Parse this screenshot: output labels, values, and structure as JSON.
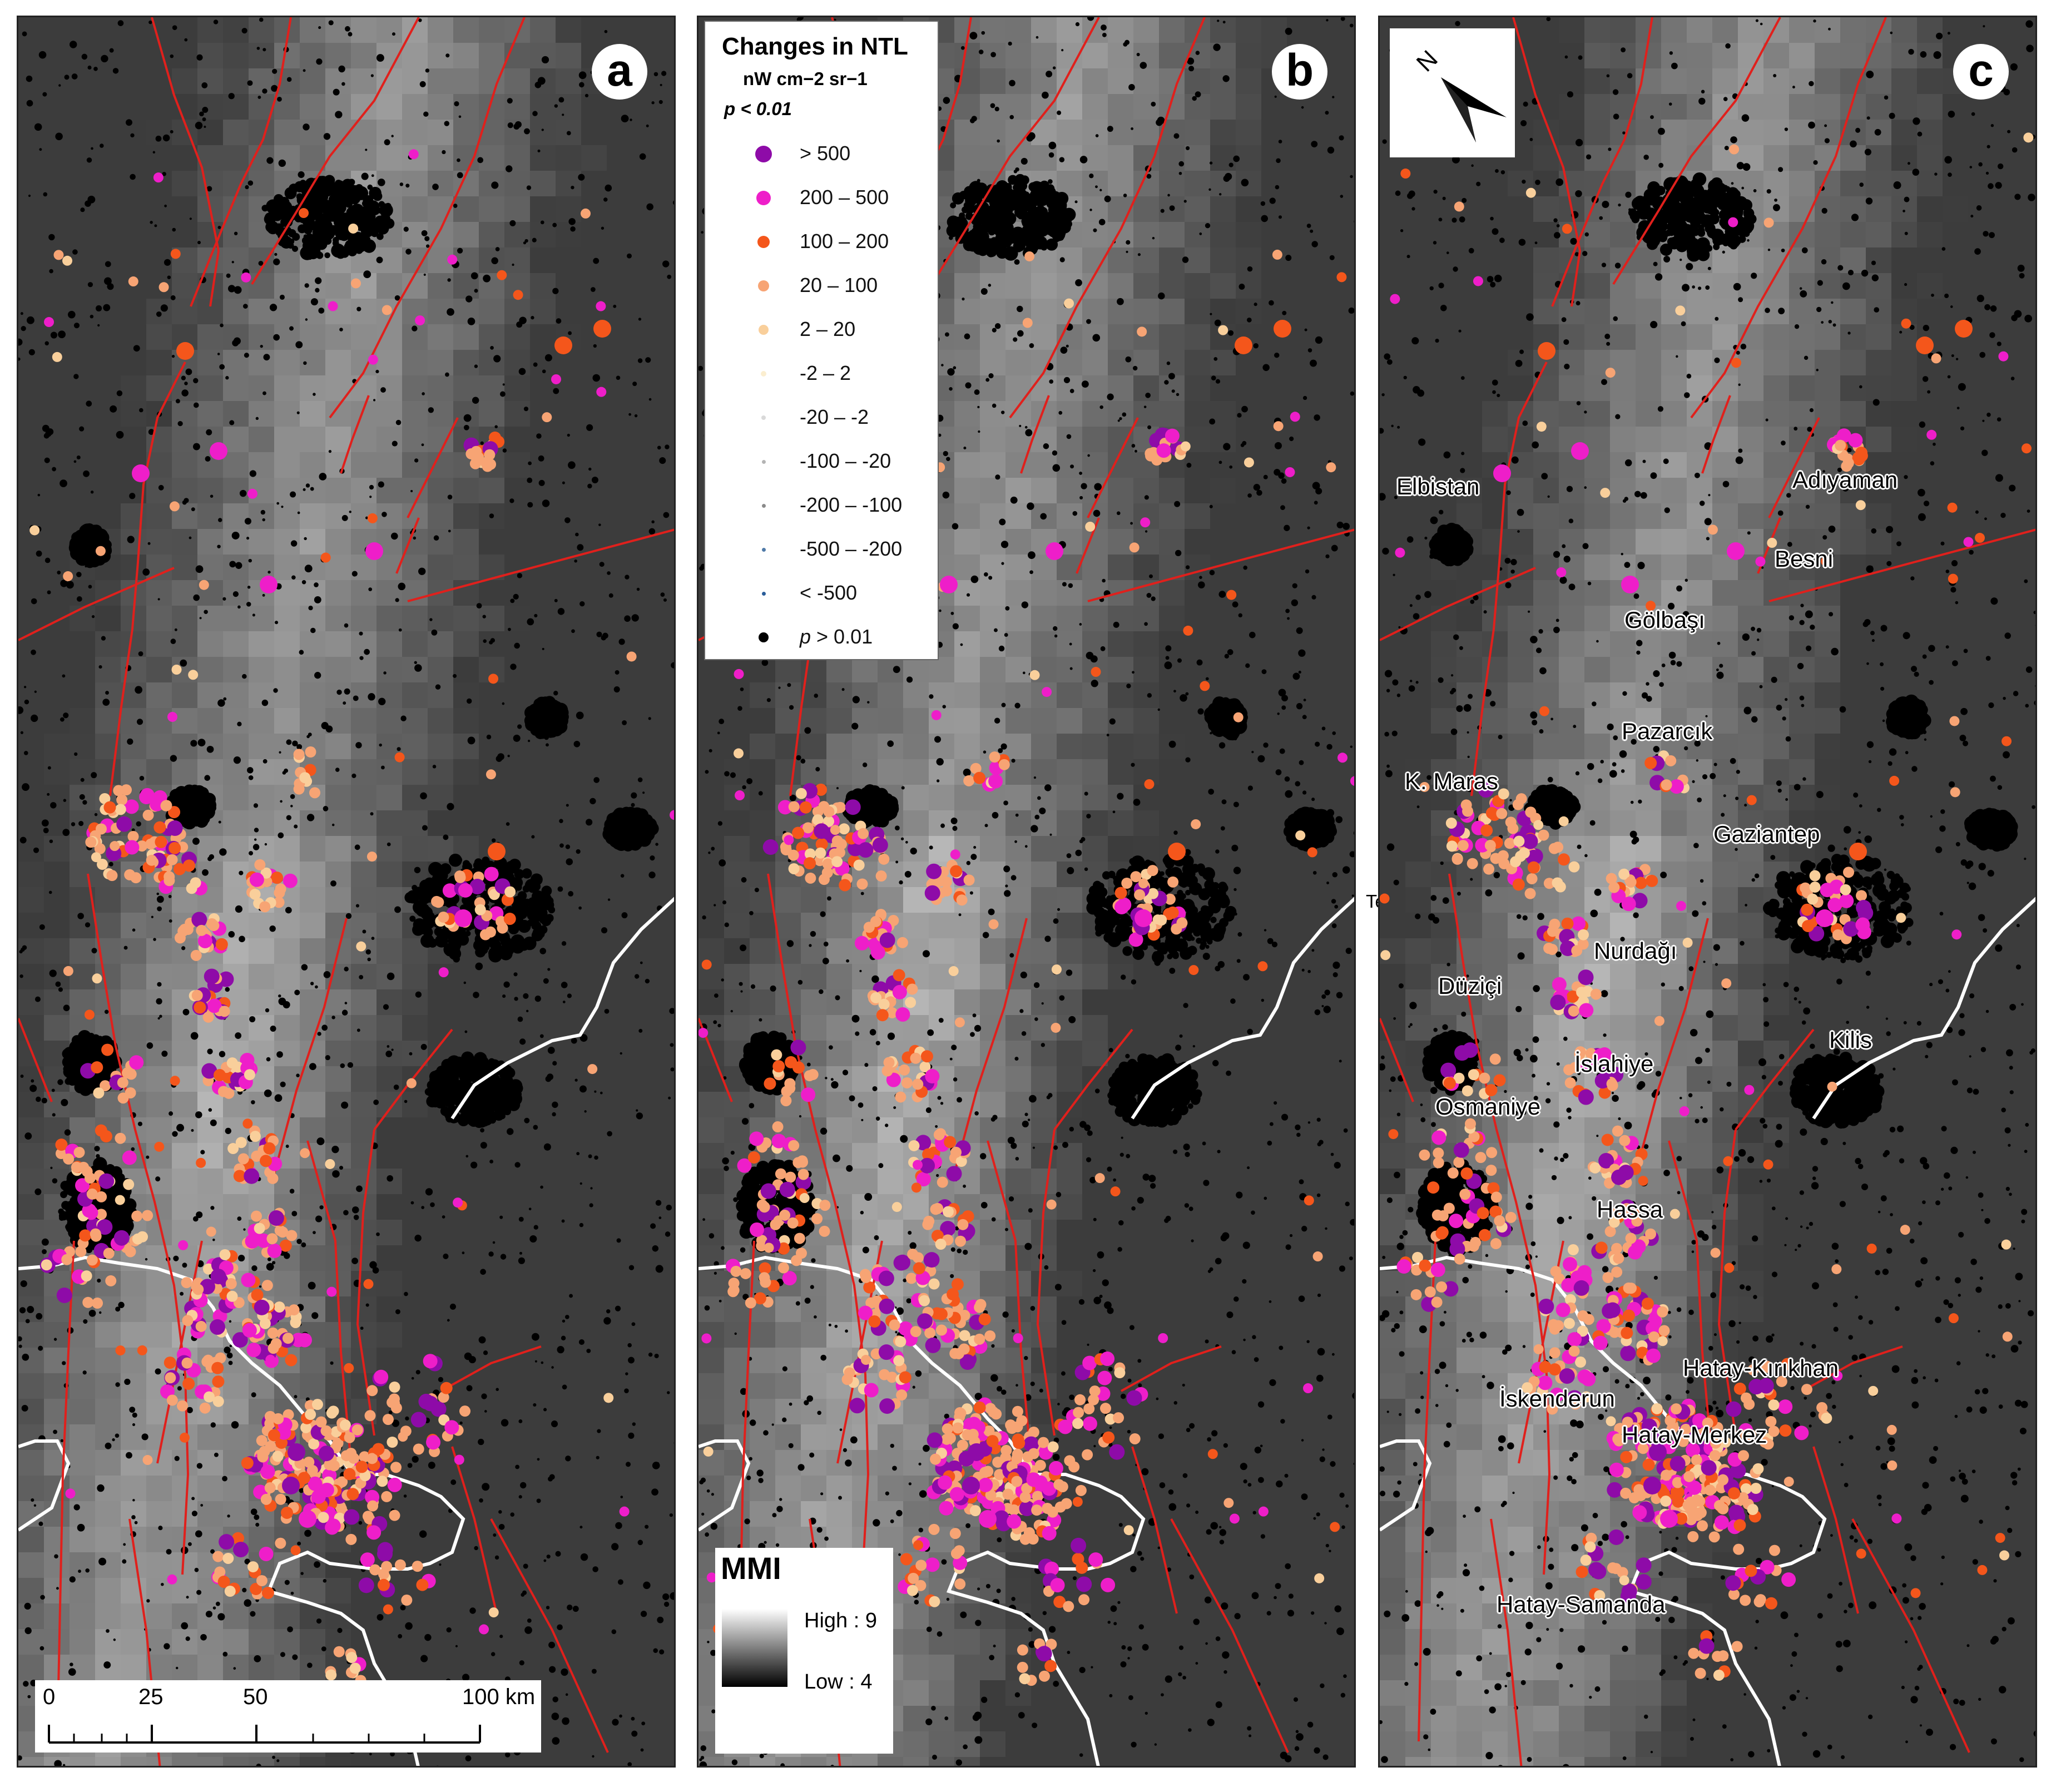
{
  "panels": [
    {
      "label": "a"
    },
    {
      "label": "b"
    },
    {
      "label": "c"
    }
  ],
  "legend": {
    "title": "Changes in NTL",
    "unit": "nW cm−2 sr−1",
    "pvalue": "p < 0.01",
    "classes": [
      {
        "label": "> 500",
        "color": "#8e0ba8"
      },
      {
        "label": "200 – 500",
        "color": "#ee1ec9"
      },
      {
        "label": "100 – 200",
        "color": "#f4561b"
      },
      {
        "label": "20 – 100",
        "color": "#f7a474"
      },
      {
        "label": "2 – 20",
        "color": "#f9cf9b"
      },
      {
        "label": "-2 – 2",
        "color": "#fbeed0"
      },
      {
        "label": "-20 – -2",
        "color": "#d9d9d9"
      },
      {
        "label": "-100 – -20",
        "color": "#b4b4b4"
      },
      {
        "label": "-200 – -100",
        "color": "#8a8a8a"
      },
      {
        "label": "-500 – -200",
        "color": "#4f7aa8"
      },
      {
        "label": "< -500",
        "color": "#2a5d9a"
      },
      {
        "label": "p > 0.01",
        "color": "#000000"
      }
    ]
  },
  "mmi": {
    "title": "MMI",
    "high": "High : 9",
    "low": "Low : 4"
  },
  "scalebar": {
    "ticks": [
      "0",
      "25",
      "50",
      "100 km"
    ]
  },
  "north_label": "N",
  "stray_label": "Text",
  "places": {
    "elbistan": "Elbistan",
    "adiyaman": "Adıyaman",
    "besni": "Besni",
    "golbasi": "Gölbaşı",
    "pazarcik": "Pazarcık",
    "kmaras": "K. Maras",
    "gaziantep": "Gaziantep",
    "nurdagi": "Nurdağı",
    "duzici": "Düziçi",
    "kilis": "Kilis",
    "islahiye": "İslahiye",
    "osmaniye": "Osmaniye",
    "hassa": "Hassa",
    "kirikhan": "Hatay-Kırıkhan",
    "iskenderun": "İskenderun",
    "merkez": "Hatay-Merkez",
    "samandag": "Hatay-Samanda"
  },
  "colors": {
    "fault": "#e0201c",
    "coast": "#ffffff",
    "purple": "#8e0ba8",
    "magenta": "#ee1ec9",
    "orange": "#f4561b",
    "peach": "#f7a474",
    "light": "#f9cf9b"
  }
}
